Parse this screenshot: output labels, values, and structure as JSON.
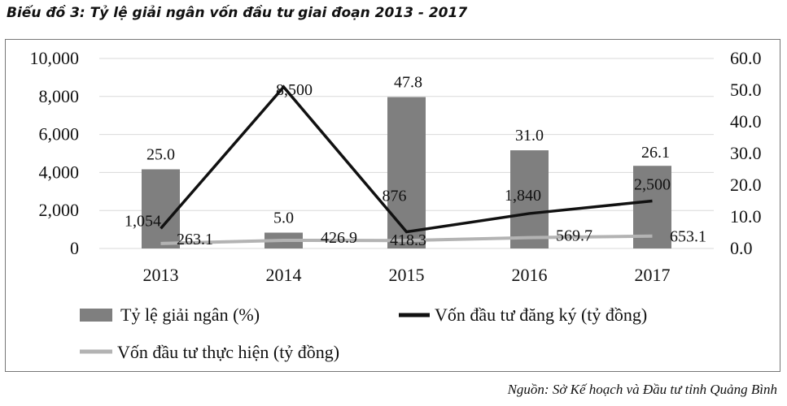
{
  "title": "Biểu đồ 3: Tỷ lệ giải ngân vốn đầu tư giai đoạn 2013 - 2017",
  "source": "Nguồn: Sở Kế hoạch và Đầu tư tỉnh Quảng Bình",
  "colors": {
    "bar": "#7f7f7f",
    "registered_line": "#111111",
    "implemented_line": "#b3b3b3",
    "grid": "#d9d9d9"
  },
  "chart_data": {
    "type": "bar",
    "categories": [
      "2013",
      "2014",
      "2015",
      "2016",
      "2017"
    ],
    "left_axis": {
      "ylim": [
        0,
        10000
      ],
      "ticks": [
        0,
        2000,
        4000,
        6000,
        8000,
        10000
      ],
      "tick_labels": [
        "0",
        "2,000",
        "4,000",
        "6,000",
        "8,000",
        "10,000"
      ]
    },
    "right_axis": {
      "ylim": [
        0,
        60
      ],
      "ticks": [
        0,
        10,
        20,
        30,
        40,
        50,
        60
      ],
      "tick_labels": [
        "0.0",
        "10.0",
        "20.0",
        "30.0",
        "40.0",
        "50.0",
        "60.0"
      ]
    },
    "grid": true,
    "legend_placement": "bottom",
    "series": [
      {
        "name": "Tỷ lệ giải ngân (%)",
        "type": "bar",
        "axis": "right",
        "values": [
          25.0,
          5.0,
          47.8,
          31.0,
          26.1
        ],
        "labels": [
          "25.0",
          "5.0",
          "47.8",
          "31.0",
          "26.1"
        ]
      },
      {
        "name": "Vốn đầu tư đăng ký (tỷ đồng)",
        "type": "line",
        "axis": "left",
        "values": [
          1054,
          8500,
          876,
          1840,
          2500
        ],
        "labels": [
          "1,054",
          "8,500",
          "876",
          "1,840",
          "2,500"
        ]
      },
      {
        "name": "Vốn đầu tư thực hiện (tỷ đồng)",
        "type": "line",
        "axis": "left",
        "values": [
          263.1,
          426.9,
          418.3,
          569.7,
          653.1
        ],
        "labels": [
          "263.1",
          "426.9",
          "418.3",
          "569.7",
          "653.1"
        ]
      }
    ]
  }
}
